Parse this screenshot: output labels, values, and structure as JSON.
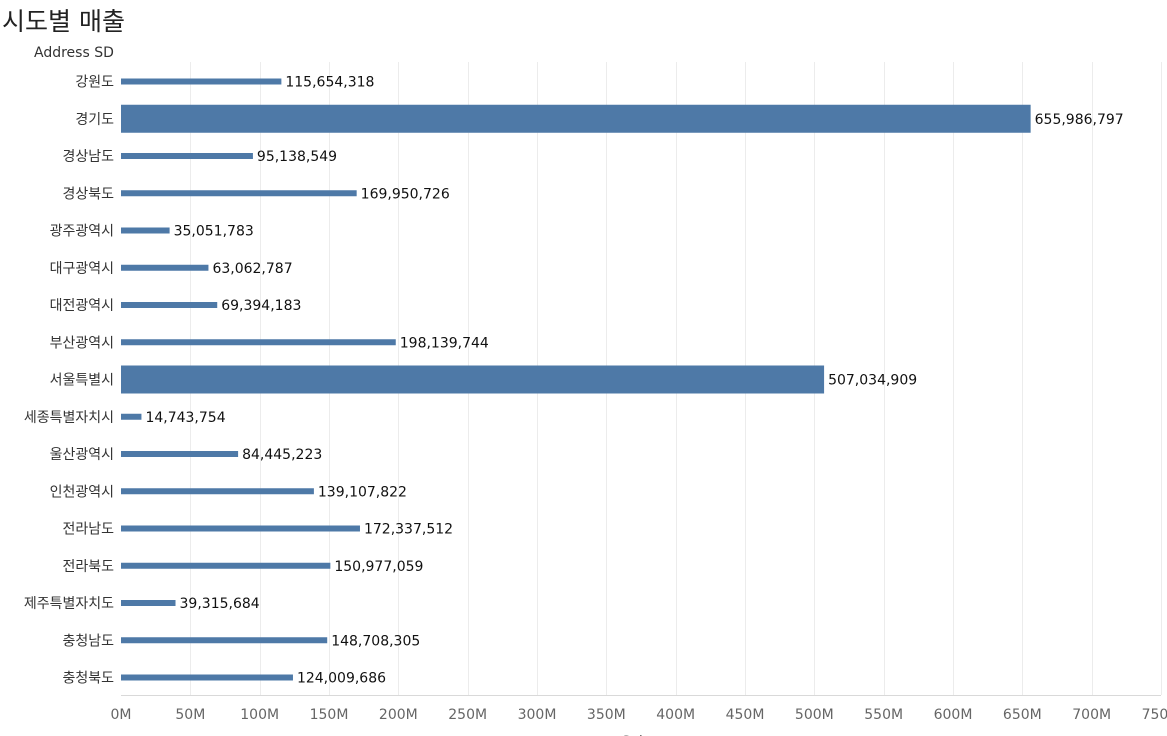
{
  "header": {
    "title": "시도별 매출",
    "row_field": "Address SD"
  },
  "chart_data": {
    "type": "bar",
    "orientation": "horizontal",
    "bar_color": "#4e79a7",
    "categories": [
      "강원도",
      "경기도",
      "경상남도",
      "경상북도",
      "광주광역시",
      "대구광역시",
      "대전광역시",
      "부산광역시",
      "서울특별시",
      "세종특별자치시",
      "울산광역시",
      "인천광역시",
      "전라남도",
      "전라북도",
      "제주특별자치도",
      "충청남도",
      "충청북도"
    ],
    "values": [
      115654318,
      655986797,
      95138549,
      169950726,
      35051783,
      63062787,
      69394183,
      198139744,
      507034909,
      14743754,
      84445223,
      139107822,
      172337512,
      150977059,
      39315684,
      148708305,
      124009686
    ],
    "value_labels": [
      "115,654,318",
      "655,986,797",
      "95,138,549",
      "169,950,726",
      "35,051,783",
      "63,062,787",
      "69,394,183",
      "198,139,744",
      "507,034,909",
      "14,743,754",
      "84,445,223",
      "139,107,822",
      "172,337,512",
      "150,977,059",
      "39,315,684",
      "148,708,305",
      "124,009,686"
    ],
    "highlight_indices": [
      1,
      8
    ],
    "xlim": [
      0,
      750000000
    ],
    "x_ticks": [
      0,
      50000000,
      100000000,
      150000000,
      200000000,
      250000000,
      300000000,
      350000000,
      400000000,
      450000000,
      500000000,
      550000000,
      600000000,
      650000000,
      700000000,
      750000000
    ],
    "x_tick_labels": [
      "0M",
      "50M",
      "100M",
      "150M",
      "200M",
      "250M",
      "300M",
      "350M",
      "400M",
      "450M",
      "500M",
      "550M",
      "600M",
      "650M",
      "700M",
      "750M"
    ],
    "xlabel": "Sales",
    "grid": true
  }
}
